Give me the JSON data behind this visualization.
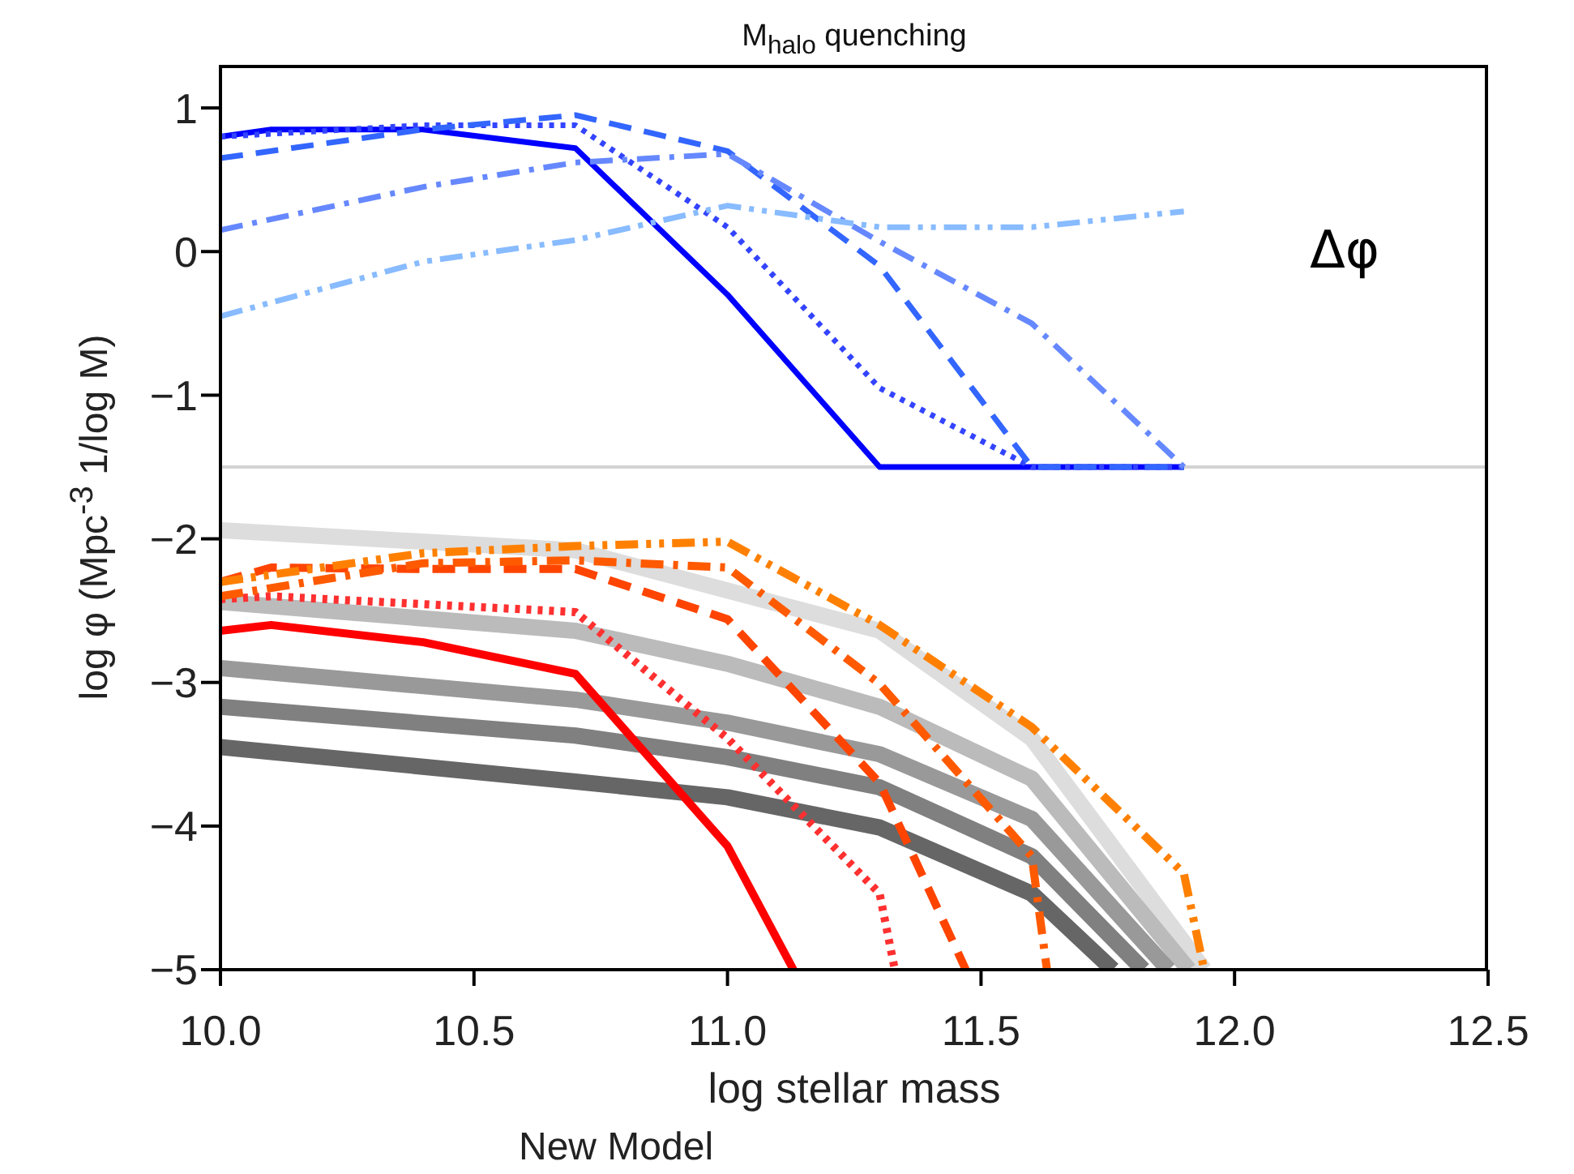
{
  "chart_data": {
    "type": "line",
    "title": "M$_{halo}$ quenching",
    "xlabel": "log stellar mass",
    "ylabel": "log φ (Mpc$^{-3}$ 1/log M)",
    "xlim": [
      10.0,
      12.5
    ],
    "xticks": [
      {
        "value": 10,
        "label": "10.0"
      },
      {
        "value": 10.5,
        "label": "10.5"
      },
      {
        "value": 11,
        "label": "11.0"
      },
      {
        "value": 11.5,
        "label": "11.5"
      },
      {
        "value": 12,
        "label": "12.0"
      },
      {
        "value": 12.5,
        "label": "12.5"
      }
    ],
    "ylim": [
      -5,
      1.3
    ],
    "yticks": [
      -5,
      -4,
      -3,
      -2,
      -1,
      0,
      1
    ],
    "marker": "none",
    "ref_lines": [
      {
        "axis": "y",
        "value": -1.5,
        "color": "#d3d3d3",
        "line_style": "solid"
      }
    ],
    "annotations": [
      "Δφ",
      "New Model"
    ],
    "series": [
      {
        "color": "#0000ff",
        "line_style": "solid",
        "x": [
          10.0,
          10.1,
          10.4,
          10.7,
          11.0,
          11.3,
          11.6,
          11.9
        ],
        "values": [
          0.8,
          0.85,
          0.85,
          0.72,
          -0.3,
          -1.5,
          -1.5,
          -1.5
        ]
      },
      {
        "color": "#3344ff",
        "line_style": "dotted",
        "x": [
          10.0,
          10.4,
          10.7,
          11.0,
          11.3,
          11.6,
          11.9
        ],
        "values": [
          0.8,
          0.88,
          0.88,
          0.17,
          -0.95,
          -1.5,
          -1.5
        ]
      },
      {
        "color": "#3366ff",
        "line_style": "dashed",
        "x": [
          10.0,
          10.4,
          10.7,
          11.0,
          11.3,
          11.6,
          11.9
        ],
        "values": [
          0.65,
          0.85,
          0.95,
          0.7,
          -0.1,
          -1.5,
          -1.5
        ]
      },
      {
        "color": "#6688ff",
        "line_style": "dashdot",
        "x": [
          10.0,
          10.4,
          10.7,
          11.0,
          11.3,
          11.6,
          11.9
        ],
        "values": [
          0.15,
          0.45,
          0.62,
          0.68,
          0.07,
          -0.5,
          -1.5
        ]
      },
      {
        "color": "#88bbff",
        "line_style": "dashdotdot",
        "x": [
          10.0,
          10.4,
          10.7,
          11.0,
          11.3,
          11.6,
          11.9
        ],
        "values": [
          -0.45,
          -0.07,
          0.08,
          0.32,
          0.17,
          0.17,
          0.28
        ]
      },
      {
        "color": "#dddddd",
        "line_style": "solid",
        "x": [
          10.0,
          10.7,
          11.0,
          11.3,
          11.6,
          11.94
        ],
        "values": [
          -1.94,
          -2.08,
          -2.36,
          -2.64,
          -3.39,
          -5
        ]
      },
      {
        "color": "#bbbbbb",
        "line_style": "solid",
        "x": [
          10.0,
          10.7,
          11.0,
          11.3,
          11.6,
          11.91
        ],
        "values": [
          -2.44,
          -2.64,
          -2.87,
          -3.17,
          -3.67,
          -5
        ]
      },
      {
        "color": "#999999",
        "line_style": "solid",
        "x": [
          10.0,
          10.7,
          11.0,
          11.3,
          11.6,
          11.87
        ],
        "values": [
          -2.9,
          -3.12,
          -3.28,
          -3.5,
          -3.95,
          -5
        ]
      },
      {
        "color": "#808080",
        "line_style": "solid",
        "x": [
          10.0,
          10.7,
          11.0,
          11.3,
          11.6,
          11.82
        ],
        "values": [
          -3.17,
          -3.37,
          -3.52,
          -3.73,
          -4.21,
          -5
        ]
      },
      {
        "color": "#666666",
        "line_style": "solid",
        "x": [
          10.0,
          10.7,
          11.0,
          11.3,
          11.6,
          11.76
        ],
        "values": [
          -3.45,
          -3.69,
          -3.8,
          -4.01,
          -4.47,
          -5
        ]
      },
      {
        "color": "#ff0000",
        "line_style": "solid",
        "x": [
          10.0,
          10.1,
          10.4,
          10.7,
          11.0,
          11.13
        ],
        "values": [
          -2.64,
          -2.6,
          -2.72,
          -2.94,
          -4.14,
          -5
        ]
      },
      {
        "color": "#ff3030",
        "line_style": "dotted",
        "x": [
          10.0,
          10.1,
          10.7,
          11.0,
          11.3,
          11.33
        ],
        "values": [
          -2.42,
          -2.4,
          -2.51,
          -3.39,
          -4.47,
          -5
        ]
      },
      {
        "color": "#ff4400",
        "line_style": "dashed",
        "x": [
          10.0,
          10.1,
          10.4,
          10.7,
          11.0,
          11.3,
          11.47
        ],
        "values": [
          -2.3,
          -2.2,
          -2.21,
          -2.21,
          -2.56,
          -3.7,
          -5
        ]
      },
      {
        "color": "#ff5a00",
        "line_style": "dashdot",
        "x": [
          10.0,
          10.4,
          10.7,
          11.0,
          11.3,
          11.6,
          11.63
        ],
        "values": [
          -2.4,
          -2.17,
          -2.15,
          -2.2,
          -3.01,
          -4.21,
          -5
        ]
      },
      {
        "color": "#ff8000",
        "line_style": "dashdotdot",
        "x": [
          10.0,
          10.4,
          10.7,
          11.0,
          11.3,
          11.6,
          11.9,
          11.94
        ],
        "values": [
          -2.3,
          -2.1,
          -2.05,
          -2.02,
          -2.6,
          -3.31,
          -4.33,
          -5
        ]
      }
    ]
  }
}
